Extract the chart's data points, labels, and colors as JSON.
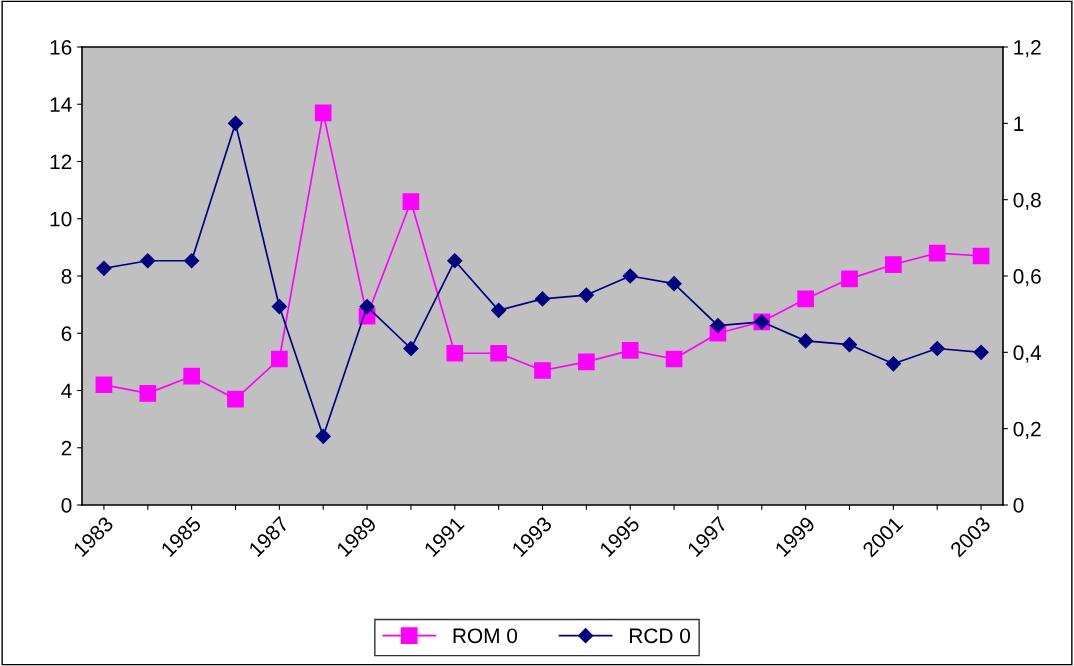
{
  "chart_data": {
    "type": "line",
    "categories": [
      "1983",
      null,
      "1985",
      null,
      "1987",
      null,
      "1989",
      null,
      "1991",
      null,
      "1993",
      null,
      "1995",
      null,
      "1997",
      null,
      "1999",
      null,
      "2001",
      null,
      "2003"
    ],
    "series": [
      {
        "name": "ROM 0",
        "color": "#ff00ff",
        "marker": "square",
        "values": [
          4.2,
          3.9,
          4.5,
          3.7,
          5.1,
          13.7,
          6.6,
          10.6,
          5.3,
          5.3,
          4.7,
          5.0,
          5.4,
          5.1,
          6.0,
          6.4,
          7.2,
          7.9,
          8.4,
          8.8,
          8.7
        ]
      },
      {
        "name": "RCD 0",
        "color": "#000080",
        "marker": "diamond",
        "axis": "y2",
        "values": [
          0.62,
          0.64,
          0.64,
          1.0,
          0.52,
          0.18,
          0.52,
          0.41,
          0.64,
          0.51,
          0.54,
          0.55,
          0.6,
          0.58,
          0.47,
          0.48,
          0.43,
          0.42,
          0.37,
          0.41,
          0.4
        ]
      }
    ],
    "ylim": [
      0,
      16
    ],
    "yticks": [
      0,
      2,
      4,
      6,
      8,
      10,
      12,
      14,
      16
    ],
    "y2lim": [
      0,
      1.2
    ],
    "y2ticks": [
      0,
      {
        "value": 0.2,
        "label": "0,2"
      },
      {
        "value": 0.4,
        "label": "0,4"
      },
      {
        "value": 0.6,
        "label": "0,6"
      },
      {
        "value": 0.8,
        "label": "0,8"
      },
      1,
      {
        "value": 1.2,
        "label": "1,2"
      }
    ],
    "grid": false,
    "legend": "bottom"
  }
}
